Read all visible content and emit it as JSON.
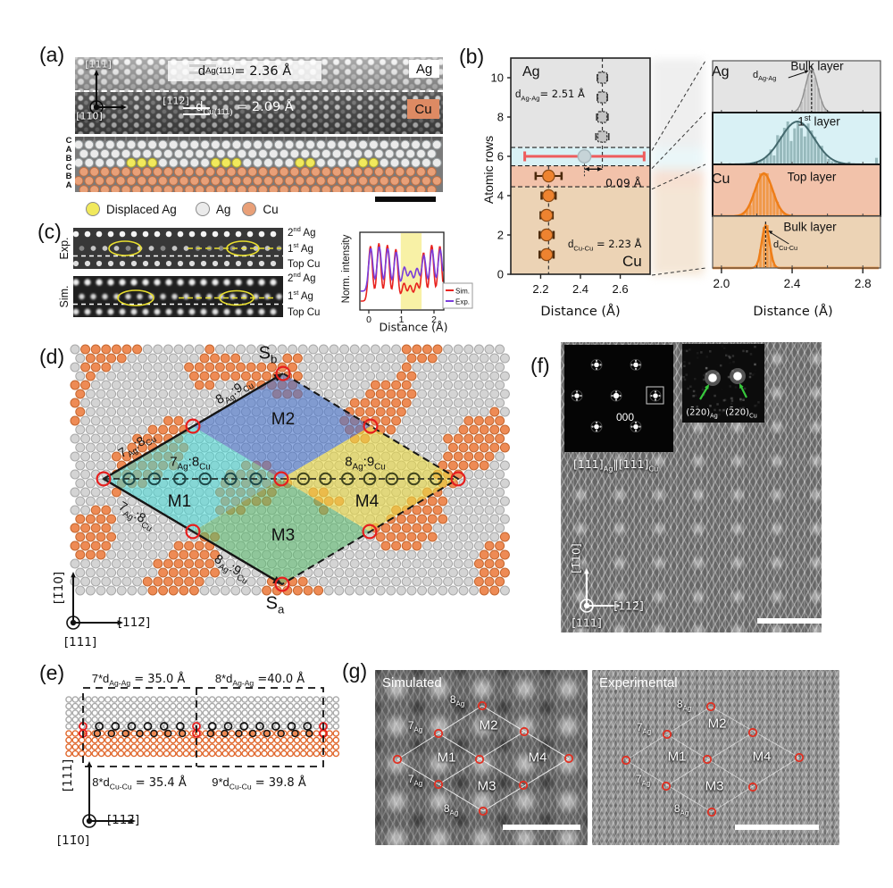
{
  "colors": {
    "ag_atom": "#ebebeb",
    "ag_stroke": "#9aa0a2",
    "cu_atom": "#e9a078",
    "cu_stroke": "#bb7047",
    "displaced": "#f1e95c",
    "ag_region": "#e4e4e4",
    "first_layer": "#d9f1f5",
    "cu_top": "#f2c2aa",
    "cu_bulk": "#ecd3b5",
    "orange": "#ee8330",
    "err_dark": "#4c2a0c",
    "red_bar": "#ee5d5d",
    "gray_marker": "#c6d4d8",
    "sim_red": "#e8231f",
    "exp_purple": "#7a3ddb",
    "band_yellow": "#f8f1a6",
    "m1": "rgba(68,216,214,0.55)",
    "m2": "rgba(73,116,205,0.60)",
    "m3": "rgba(85,186,106,0.55)",
    "m4": "rgba(232,216,70,0.62)",
    "d_ag_atom": "#d4d4d4",
    "d_ag_stroke": "#a8a8a8",
    "d_cu_atom": "#ee8b55",
    "d_cu_stroke": "#c4662f"
  },
  "panel_a": {
    "label": "(a)",
    "axis_up": "[111]",
    "axis_right": "[112̄]",
    "axis_out": "[11̄0]",
    "d_ag": {
      "pre": "d",
      "sub": "Ag(111)",
      "post": " = 2.36 Å"
    },
    "d_cu": {
      "pre": "d",
      "sub": "Cu(111)",
      "post": " = 2.09 Å"
    },
    "tag_ag": "Ag",
    "tag_cu": "Cu",
    "row_letters": [
      "C",
      "A",
      "B",
      "C",
      "B",
      "A"
    ],
    "legend": {
      "displaced": "Displaced Ag",
      "ag": "Ag",
      "cu": "Cu"
    },
    "model": {
      "displaced": [
        [
          5,
          6,
          7
        ],
        [
          13,
          14,
          15
        ],
        [
          21,
          22
        ],
        [
          27,
          28
        ]
      ]
    }
  },
  "panel_b": {
    "label": "(b)",
    "left": {
      "ag": "Ag",
      "cu": "Cu",
      "d_ag": {
        "pre": "d",
        "sub": "Ag-Ag",
        "post": "= 2.51 Å"
      },
      "d_cu": {
        "pre": "d",
        "sub": "Cu-Cu",
        "post": " = 2.23 Å"
      },
      "offset": "0.09 Å"
    },
    "right": {
      "ag": "Ag",
      "cu": "Cu",
      "bulk_top": "Bulk layer",
      "first": {
        "pre": "1",
        "sup": "st",
        "post": " layer"
      },
      "top_layer": "Top layer",
      "bulk_bottom": "Bulk layer",
      "d_ag": {
        "pre": "d",
        "sub": "Ag-Ag"
      },
      "d_cu": {
        "pre": "d",
        "sub": "Cu-Cu"
      }
    }
  },
  "panel_c": {
    "label": "(c)",
    "exp": "Exp.",
    "sim": "Sim.",
    "rows": [
      {
        "pre": "2",
        "sup": "nd",
        "post": " Ag"
      },
      {
        "pre": "1",
        "sup": "st",
        "post": " Ag"
      },
      {
        "pre": "",
        "sup": "",
        "post": "Top Cu"
      }
    ]
  },
  "panel_d": {
    "label": "(d)",
    "s_b": {
      "pre": "S",
      "sub": "b"
    },
    "s_a": {
      "pre": "S",
      "sub": "a"
    },
    "r78": {
      "a": "7",
      "as": "Ag",
      "b": ":8",
      "bs": "Cu"
    },
    "r89": {
      "a": "8",
      "as": "Ag",
      "b": ":9",
      "bs": "Cu"
    },
    "m1": "M1",
    "m2": "M2",
    "m3": "M3",
    "m4": "M4",
    "axis_up": "[1̄10]",
    "axis_right": "[112̄]",
    "axis_out": "[111]"
  },
  "panel_e": {
    "label": "(e)",
    "top_left": {
      "pre": "7*d",
      "sub": "Ag-Ag",
      "post": " = 35.0 Å"
    },
    "top_right": {
      "pre": "8*d",
      "sub": "Ag-Ag",
      "post": " =40.0 Å"
    },
    "bot_left": {
      "pre": "8*d",
      "sub": "Cu-Cu",
      "post": " = 35.4 Å"
    },
    "bot_right": {
      "pre": "9*d",
      "sub": "Cu-Cu",
      "post": " = 39.8 Å"
    },
    "axis_up": "[111]",
    "axis_right": "[112̄]",
    "axis_out": "[11̄0]"
  },
  "panel_f": {
    "label": "(f)",
    "fft_center": "000",
    "zone": {
      "a": "[111]",
      "as": "Ag",
      "sep": "∥",
      "b": "[111]",
      "bs": "Cu"
    },
    "spot_ag": {
      "pre": "(2̄20)",
      "sub": "Ag"
    },
    "spot_cu": {
      "pre": "(2̄20)",
      "sub": "Cu"
    },
    "axis_up": "[1̄10]",
    "axis_right": "[112̄]",
    "axis_out": "[111]"
  },
  "panel_g": {
    "label": "(g)",
    "sim": "Simulated",
    "exp": "Experimental",
    "n7": {
      "pre": "7",
      "sub": "Ag"
    },
    "n8": {
      "pre": "8",
      "sub": "Ag"
    },
    "m1": "M1",
    "m2": "M2",
    "m3": "M3",
    "m4": "M4"
  },
  "chart_data": [
    {
      "type": "scatter",
      "xlabel": "Distance (Å)",
      "ylabel": "Atomic rows",
      "xlim": [
        2.05,
        2.75
      ],
      "ylim": [
        0,
        11
      ],
      "xticks": [
        "2.2",
        "2.4",
        "2.6"
      ],
      "yticks": [
        0,
        2,
        4,
        6,
        8,
        10
      ],
      "bands": [
        {
          "rows": [
            6.45,
            11
          ],
          "color": "ag_region"
        },
        {
          "rows": [
            5.52,
            6.45
          ],
          "color": "first_layer"
        },
        {
          "rows": [
            4.45,
            5.52
          ],
          "color": "cu_top"
        },
        {
          "rows": [
            0,
            4.45
          ],
          "color": "cu_bulk"
        }
      ],
      "reflines": [
        {
          "x": 2.51,
          "rows": [
            5.3,
            11
          ]
        },
        {
          "x": 2.24,
          "rows": [
            0,
            5.52
          ]
        }
      ],
      "series": [
        {
          "name": "Ag bulk rows",
          "style": "ag",
          "d_mean": 2.51,
          "points": [
            {
              "row": 10,
              "d": 2.51,
              "err": 0.025
            },
            {
              "row": 9,
              "d": 2.51,
              "err": 0.025
            },
            {
              "row": 8,
              "d": 2.51,
              "err": 0.028
            },
            {
              "row": 7,
              "d": 2.51,
              "err": 0.032
            }
          ]
        },
        {
          "name": "1st Ag layer",
          "style": "interface",
          "points": [
            {
              "row": 6,
              "d": 2.42,
              "err": 0.3
            }
          ]
        },
        {
          "name": "Cu top layer",
          "style": "cu",
          "points": [
            {
              "row": 5,
              "d": 2.24,
              "err": 0.065
            }
          ]
        },
        {
          "name": "Cu bulk rows",
          "style": "cu",
          "d_mean": 2.23,
          "points": [
            {
              "row": 4,
              "d": 2.24,
              "err": 0.035
            },
            {
              "row": 3,
              "d": 2.23,
              "err": 0.03
            },
            {
              "row": 2,
              "d": 2.23,
              "err": 0.035
            },
            {
              "row": 1,
              "d": 2.23,
              "err": 0.035
            }
          ]
        }
      ],
      "offset_annotation": {
        "from": 2.42,
        "to": 2.51,
        "row": 5.35,
        "label": "0.09 Å"
      }
    },
    {
      "type": "histogram-stack",
      "xlabel": "Distance (Å)",
      "xlim": [
        1.95,
        2.9
      ],
      "xticks": [
        "2.0",
        "2.4",
        "2.8"
      ],
      "panels": [
        {
          "element": "Ag",
          "layer": "Bulk layer",
          "center": 2.51,
          "sigma": 0.035,
          "bg": "ag_region",
          "bar": "#bcbcbc",
          "line": "#8f8f8f",
          "jitter": 0.12,
          "refline": true
        },
        {
          "layer": "1st layer",
          "center": 2.43,
          "sigma": 0.095,
          "bg": "first_layer",
          "bar": "#8fb3b6",
          "line": "#44696e",
          "jitter": 0.55,
          "refline": false
        },
        {
          "element": "Cu",
          "layer": "Top layer",
          "center": 2.24,
          "sigma": 0.05,
          "bg": "cu_top",
          "bar": "#f0953f",
          "line": "#ee7d17",
          "jitter": 0.18,
          "refline": false
        },
        {
          "layer": "Bulk layer",
          "center": 2.25,
          "sigma": 0.022,
          "bg": "cu_bulk",
          "bar": "#f0953f",
          "line": "#ee7d17",
          "jitter": 0.12,
          "refline": true
        }
      ]
    },
    {
      "type": "line",
      "xlabel": "Distance (Å)",
      "ylabel": "Norm. intensity",
      "xticks": [
        "0",
        "1",
        "2"
      ],
      "xlim": [
        -0.27,
        2.3
      ],
      "highlight_band": [
        0.98,
        1.62
      ],
      "series": [
        {
          "name": "Sim.",
          "color": "sim_red",
          "base": 0.03,
          "sigma": 0.062,
          "peaks": [
            [
              0.05,
              0.93
            ],
            [
              0.31,
              0.98
            ],
            [
              0.57,
              0.95
            ],
            [
              0.83,
              0.88
            ],
            [
              1.08,
              0.3
            ],
            [
              1.27,
              0.26
            ],
            [
              1.47,
              0.3
            ],
            [
              1.68,
              0.82
            ],
            [
              1.93,
              0.95
            ],
            [
              2.18,
              0.93
            ]
          ]
        },
        {
          "name": "Exp.",
          "color": "exp_purple",
          "base": 0.2,
          "sigma": 0.066,
          "peaks": [
            [
              0.06,
              0.72
            ],
            [
              0.32,
              0.75
            ],
            [
              0.58,
              0.72
            ],
            [
              0.84,
              0.66
            ],
            [
              1.09,
              0.4
            ],
            [
              1.28,
              0.33
            ],
            [
              1.48,
              0.38
            ],
            [
              1.69,
              0.6
            ],
            [
              1.94,
              0.7
            ],
            [
              2.19,
              0.7
            ]
          ]
        }
      ]
    }
  ]
}
